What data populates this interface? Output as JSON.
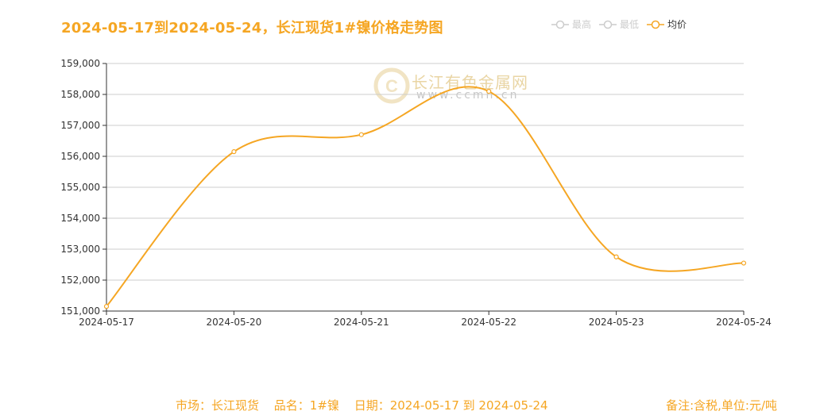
{
  "title": "2024-05-17到2024-05-24，长江现货1#镍价格走势图",
  "legend": [
    {
      "label": "最高",
      "active": false
    },
    {
      "label": "最低",
      "active": false
    },
    {
      "label": "均价",
      "active": true
    }
  ],
  "watermark": {
    "name": "长江有色金属网",
    "url": "www.ccmn.cn"
  },
  "footer": {
    "market": "市场：长江现货",
    "product": "品名：1#镍",
    "date": "日期：2024-05-17 到 2024-05-24",
    "note": "备注:含税,单位:元/吨"
  },
  "colors": {
    "accent": "#f5a623",
    "grid": "#cccccc",
    "axis": "#333333"
  },
  "chart_data": {
    "type": "line",
    "categories": [
      "2024-05-17",
      "2024-05-20",
      "2024-05-21",
      "2024-05-22",
      "2024-05-23",
      "2024-05-24"
    ],
    "series": [
      {
        "name": "均价",
        "values": [
          151150,
          156150,
          156700,
          158100,
          152750,
          152550
        ]
      }
    ],
    "yticks": [
      "151,000",
      "152,000",
      "153,000",
      "154,000",
      "155,000",
      "156,000",
      "157,000",
      "158,000",
      "159,000"
    ],
    "ylim": [
      151000,
      159000
    ],
    "grid": true,
    "legend_position": "top-right"
  }
}
